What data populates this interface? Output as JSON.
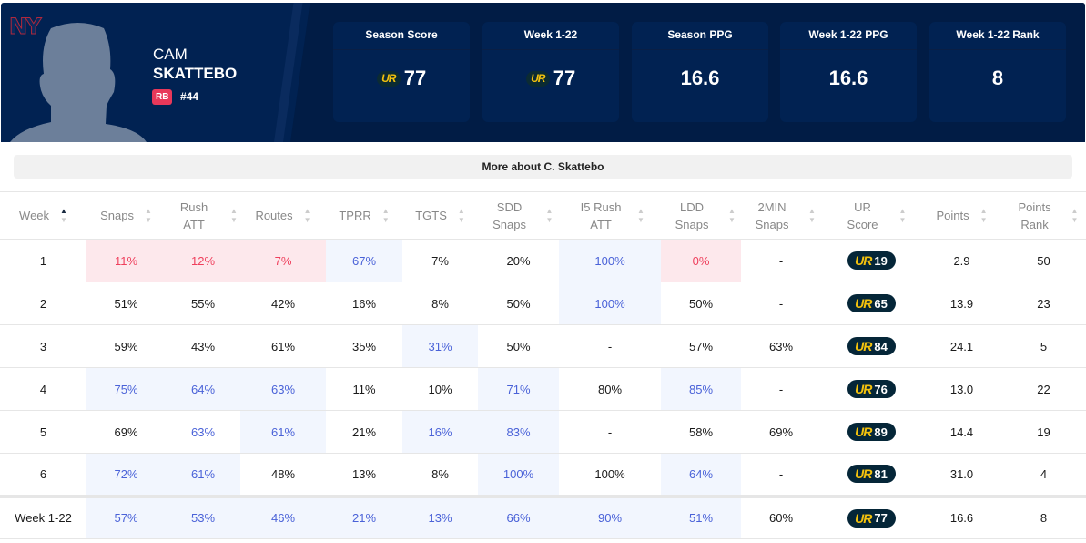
{
  "team_logo": "NY",
  "player": {
    "first": "CAM",
    "last": "SKATTEBO",
    "position": "RB",
    "number": "#44"
  },
  "badge_text": "UR",
  "cards": [
    {
      "title": "Season Score",
      "value": "77",
      "ur": true
    },
    {
      "title": "Week 1-22",
      "value": "77",
      "ur": true
    },
    {
      "title": "Season PPG",
      "value": "16.6",
      "ur": false
    },
    {
      "title": "Week 1-22 PPG",
      "value": "16.6",
      "ur": false
    },
    {
      "title": "Week 1-22 Rank",
      "value": "8",
      "ur": false
    }
  ],
  "more_label": "More about C. Skattebo",
  "columns": [
    "Week",
    "Snaps",
    "Rush ATT",
    "Routes",
    "TPRR",
    "TGTS",
    "SDD Snaps",
    "I5 Rush ATT",
    "LDD Snaps",
    "2MIN Snaps",
    "UR Score",
    "Points",
    "Points Rank"
  ],
  "rows": [
    {
      "cells": [
        "1",
        "11%",
        "12%",
        "7%",
        "67%",
        "7%",
        "20%",
        "100%",
        "0%",
        "-",
        "19",
        "2.9",
        "50"
      ],
      "styles": [
        "",
        "r",
        "r",
        "r",
        "b",
        "",
        "",
        "b",
        "r",
        "",
        "",
        "",
        ""
      ]
    },
    {
      "cells": [
        "2",
        "51%",
        "55%",
        "42%",
        "16%",
        "8%",
        "50%",
        "100%",
        "50%",
        "-",
        "65",
        "13.9",
        "23"
      ],
      "styles": [
        "",
        "",
        "",
        "",
        "",
        "",
        "",
        "b",
        "",
        "",
        "",
        "",
        ""
      ]
    },
    {
      "cells": [
        "3",
        "59%",
        "43%",
        "61%",
        "35%",
        "31%",
        "50%",
        "-",
        "57%",
        "63%",
        "84",
        "24.1",
        "5"
      ],
      "styles": [
        "",
        "",
        "",
        "",
        "",
        "b",
        "",
        "",
        "",
        "",
        "",
        "",
        ""
      ]
    },
    {
      "cells": [
        "4",
        "75%",
        "64%",
        "63%",
        "11%",
        "10%",
        "71%",
        "80%",
        "85%",
        "-",
        "76",
        "13.0",
        "22"
      ],
      "styles": [
        "",
        "b",
        "b",
        "b",
        "",
        "",
        "b",
        "",
        "b",
        "",
        "",
        "",
        ""
      ]
    },
    {
      "cells": [
        "5",
        "69%",
        "63%",
        "61%",
        "21%",
        "16%",
        "83%",
        "-",
        "58%",
        "69%",
        "89",
        "14.4",
        "19"
      ],
      "styles": [
        "",
        "",
        "bt",
        "b",
        "",
        "b",
        "b",
        "",
        "",
        "",
        "",
        "",
        ""
      ]
    },
    {
      "cells": [
        "6",
        "72%",
        "61%",
        "48%",
        "13%",
        "8%",
        "100%",
        "100%",
        "64%",
        "-",
        "81",
        "31.0",
        "4"
      ],
      "styles": [
        "",
        "b",
        "b",
        "",
        "",
        "",
        "b",
        "",
        "b",
        "",
        "",
        "",
        ""
      ]
    }
  ],
  "summary": {
    "cells": [
      "Week 1-22",
      "57%",
      "53%",
      "46%",
      "21%",
      "13%",
      "66%",
      "90%",
      "51%",
      "60%",
      "77",
      "16.6",
      "8"
    ],
    "styles": [
      "",
      "b",
      "b",
      "b",
      "b",
      "b",
      "b",
      "b",
      "b",
      "",
      "",
      "",
      ""
    ]
  }
}
